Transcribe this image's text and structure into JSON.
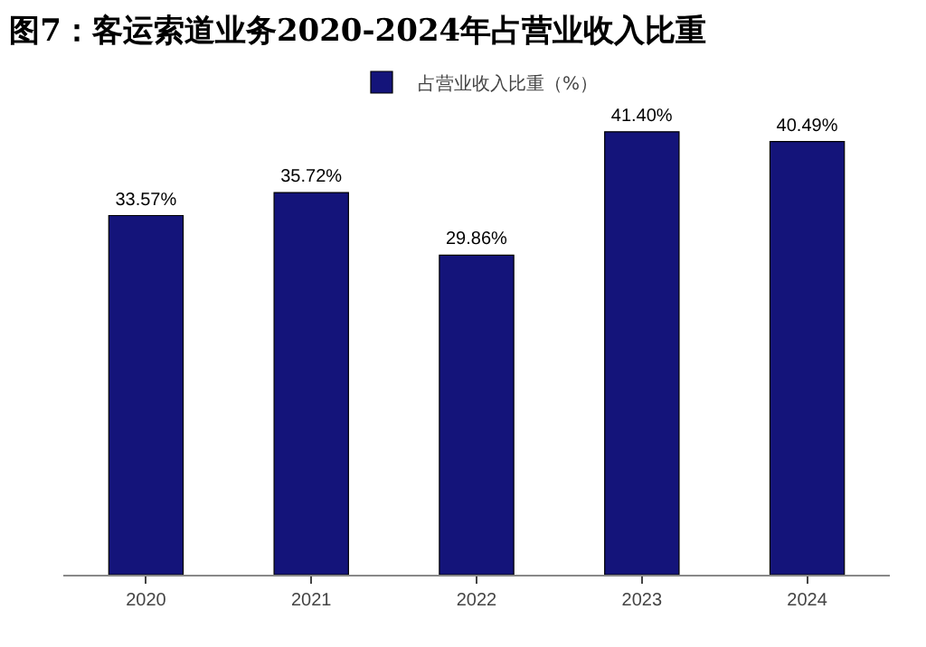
{
  "chart_data": {
    "type": "bar",
    "title": "图7：客运索道业务2020-2024年占营业收入比重",
    "categories": [
      "2020",
      "2021",
      "2022",
      "2023",
      "2024"
    ],
    "series": [
      {
        "name": "占营业收入比重（%）",
        "color": "#14147a",
        "values": [
          33.57,
          35.72,
          29.86,
          41.4,
          40.49
        ],
        "value_labels": [
          "33.57%",
          "35.72%",
          "29.86%",
          "41.40%",
          "40.49%"
        ]
      }
    ],
    "legend": "top",
    "grid": false,
    "tick_labels": "x"
  }
}
